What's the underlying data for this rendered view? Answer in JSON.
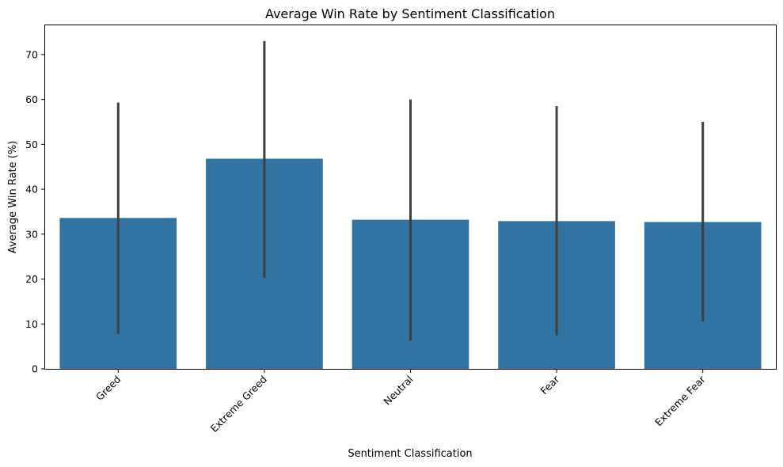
{
  "chart_data": {
    "type": "bar",
    "title": "Average Win Rate by Sentiment Classification",
    "xlabel": "Sentiment Classification",
    "ylabel": "Average Win Rate (%)",
    "categories": [
      "Greed",
      "Extreme Greed",
      "Neutral",
      "Fear",
      "Extreme Fear"
    ],
    "values": [
      33.6,
      46.8,
      33.2,
      32.9,
      32.7
    ],
    "error_low": [
      7.8,
      20.3,
      6.3,
      7.5,
      10.5
    ],
    "error_high": [
      59.3,
      73.0,
      60.0,
      58.5,
      55.0
    ],
    "yticks": [
      0,
      10,
      20,
      30,
      40,
      50,
      60,
      70
    ],
    "ylim": [
      0,
      76.5
    ],
    "grid": false,
    "colors": {
      "bar": "#3274a1",
      "error_bar": "#3f3f3f"
    }
  }
}
